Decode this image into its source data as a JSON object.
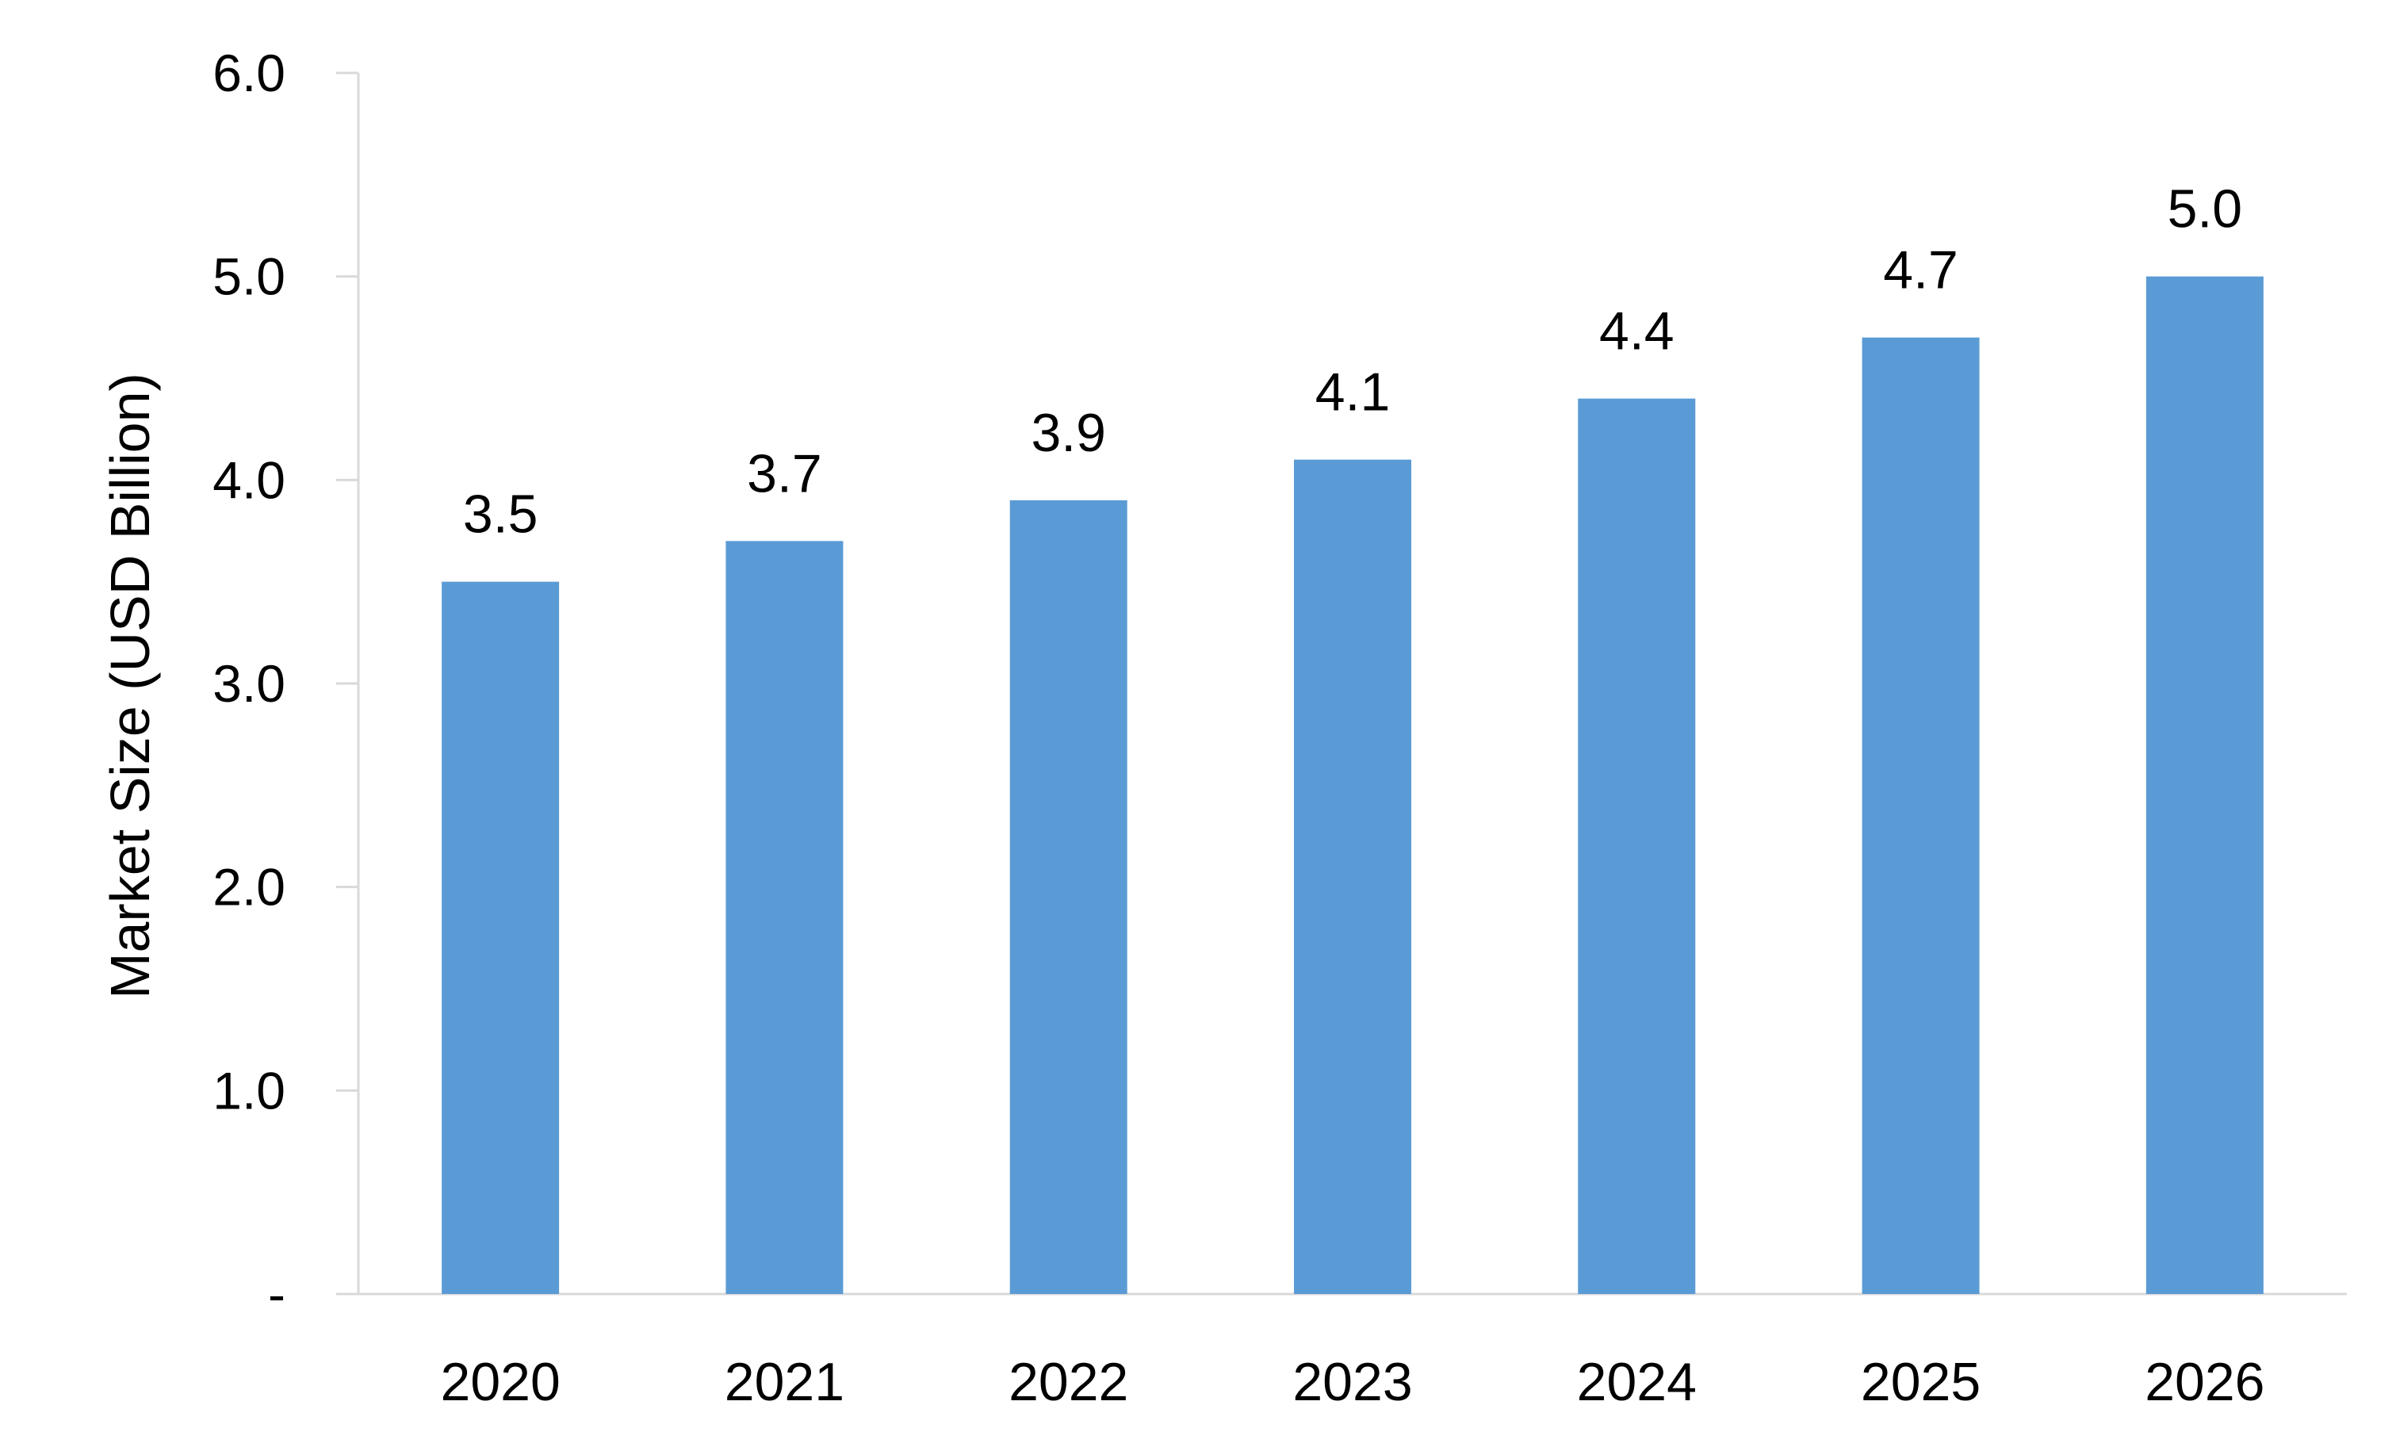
{
  "chart_data": {
    "type": "bar",
    "title": "",
    "xlabel": "",
    "ylabel": "Market Size (USD Billion)",
    "categories": [
      "2020",
      "2021",
      "2022",
      "2023",
      "2024",
      "2025",
      "2026"
    ],
    "values": [
      3.5,
      3.7,
      3.9,
      4.1,
      4.4,
      4.7,
      5.0
    ],
    "data_labels": [
      "3.5",
      "3.7",
      "3.9",
      "4.1",
      "4.4",
      "4.7",
      "5.0"
    ],
    "ylim": [
      0,
      6
    ],
    "yticks": [
      {
        "value": 0,
        "label": "-"
      },
      {
        "value": 1,
        "label": "1.0"
      },
      {
        "value": 2,
        "label": "2.0"
      },
      {
        "value": 3,
        "label": "3.0"
      },
      {
        "value": 4,
        "label": "4.0"
      },
      {
        "value": 5,
        "label": "5.0"
      },
      {
        "value": 6,
        "label": "6.0"
      }
    ],
    "grid": false,
    "legend": "none",
    "colors": {
      "bar": "#5B9BD5",
      "axis": "#D9D9D9",
      "text": "#000000"
    }
  }
}
